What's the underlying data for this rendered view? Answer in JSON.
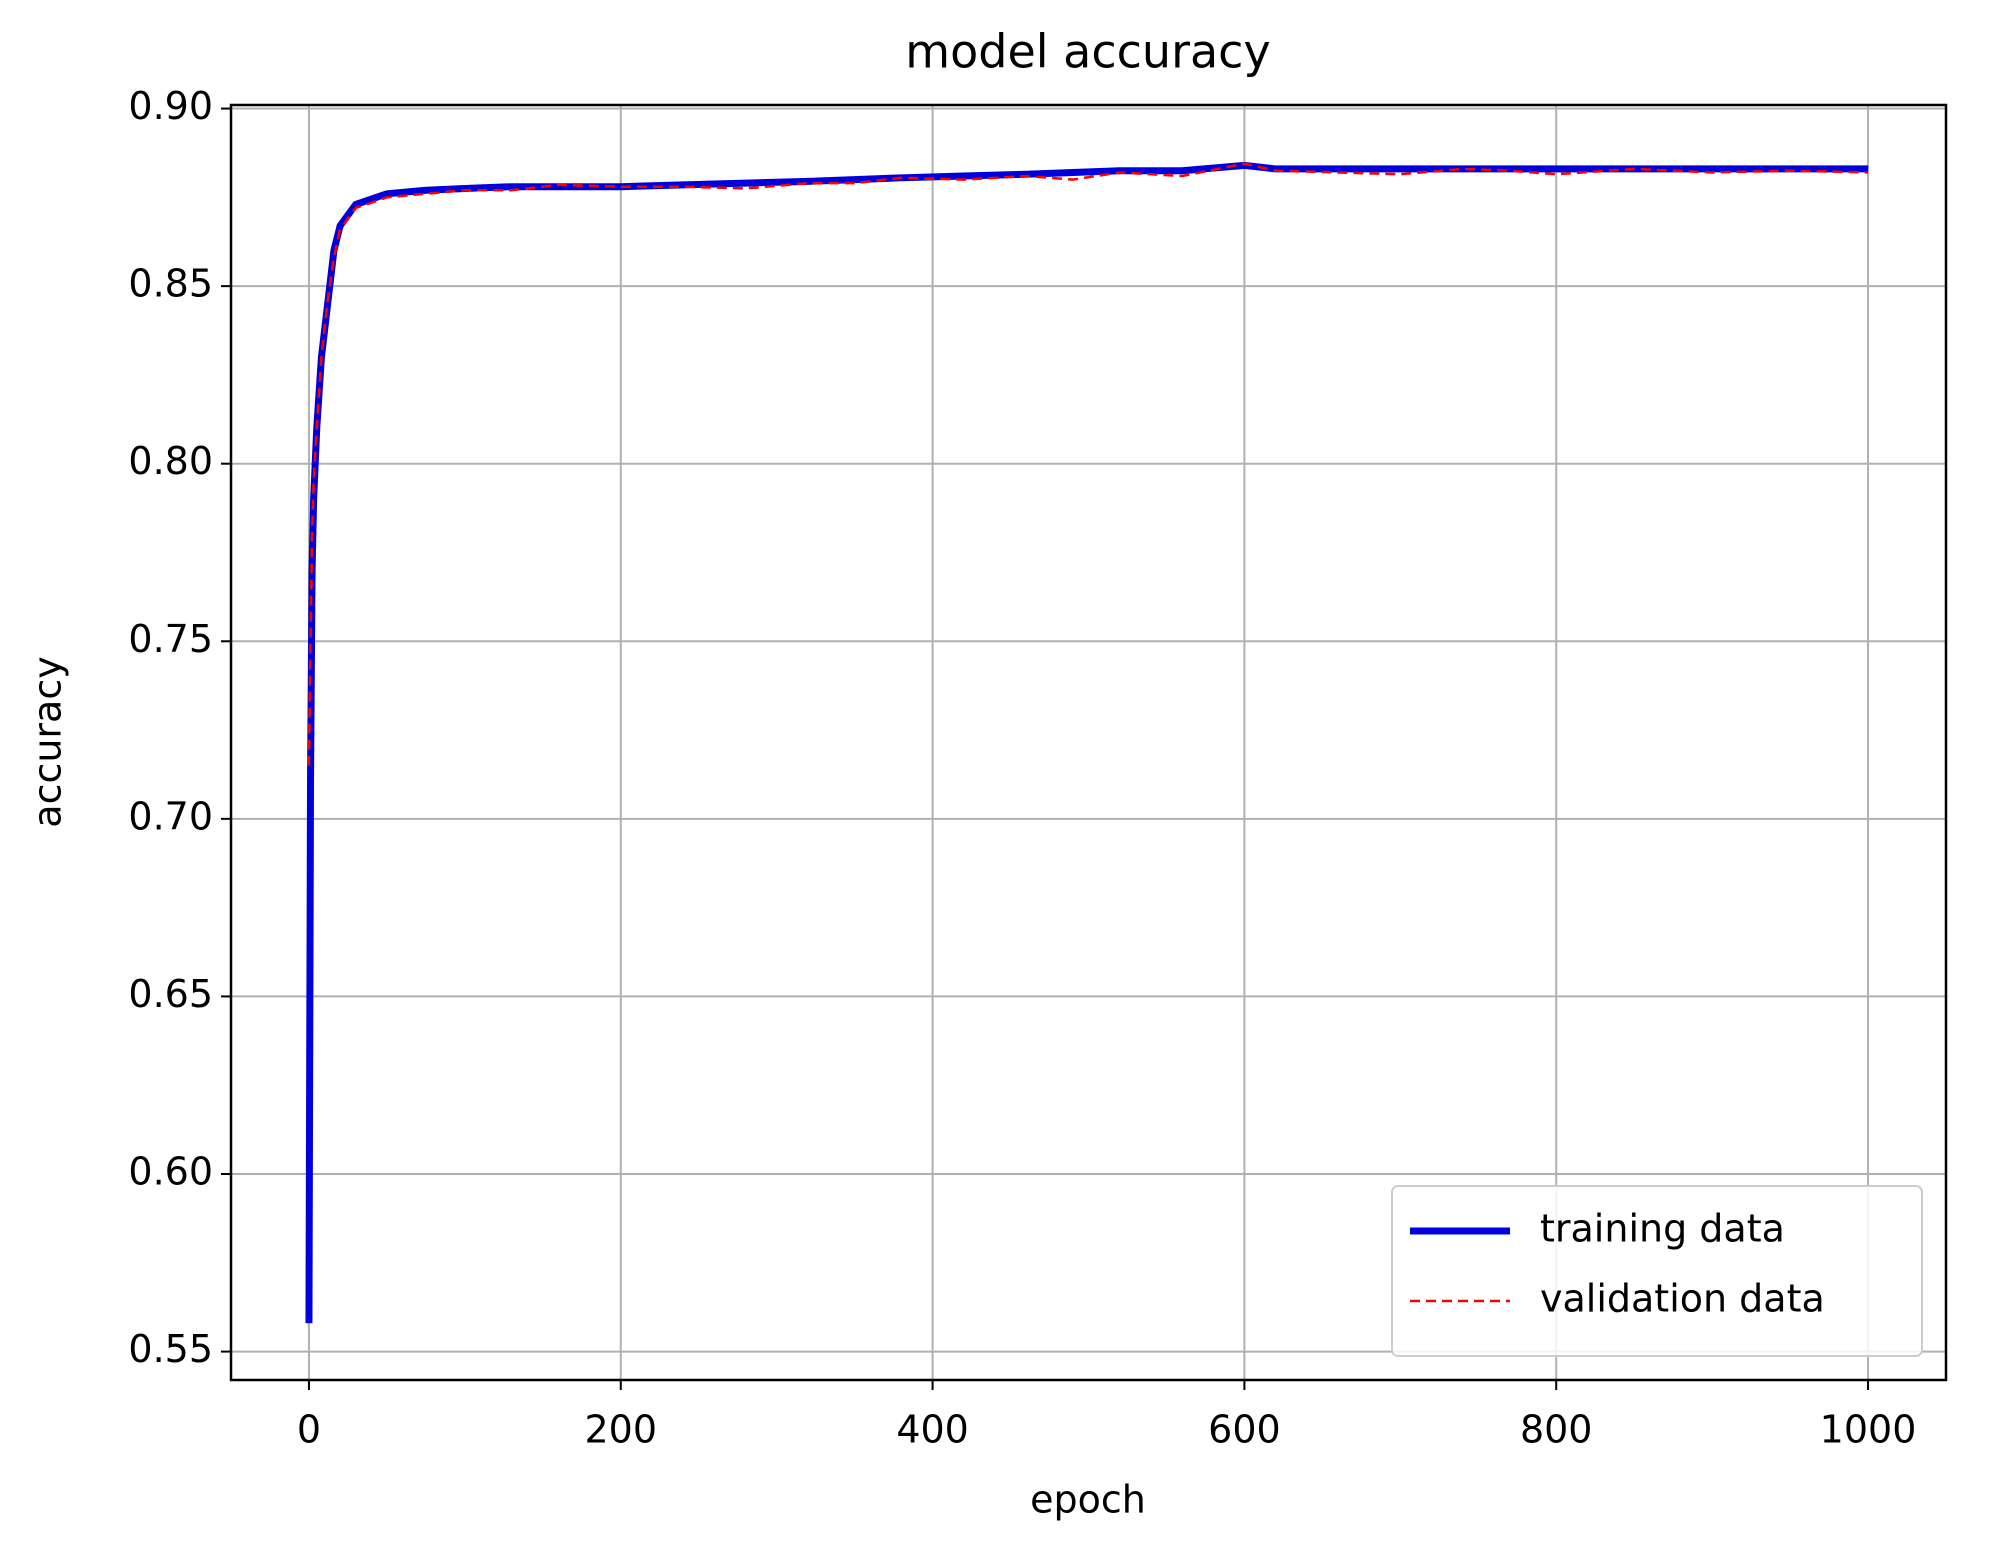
{
  "chart_data": {
    "type": "line",
    "title": "model accuracy",
    "xlabel": "epoch",
    "ylabel": "accuracy",
    "x": [
      0,
      1,
      2,
      3,
      5,
      8,
      12,
      16,
      20,
      30,
      50,
      75,
      100,
      130,
      160,
      200,
      240,
      280,
      320,
      350,
      380,
      420,
      460,
      490,
      520,
      560,
      600,
      620,
      660,
      700,
      740,
      770,
      800,
      850,
      900,
      950,
      1000
    ],
    "series": [
      {
        "name": "training data",
        "color": "#0000dd",
        "style": "solid",
        "values": [
          0.558,
          0.71,
          0.77,
          0.79,
          0.81,
          0.83,
          0.845,
          0.86,
          0.867,
          0.873,
          0.876,
          0.877,
          0.8775,
          0.878,
          0.878,
          0.878,
          0.8785,
          0.879,
          0.8795,
          0.88,
          0.8805,
          0.881,
          0.8815,
          0.882,
          0.8825,
          0.8825,
          0.884,
          0.883,
          0.883,
          0.883,
          0.883,
          0.883,
          0.883,
          0.883,
          0.883,
          0.883,
          0.883
        ]
      },
      {
        "name": "validation data",
        "color": "#ff0000",
        "style": "dashed",
        "values": [
          0.715,
          0.75,
          0.78,
          0.795,
          0.81,
          0.83,
          0.846,
          0.858,
          0.866,
          0.872,
          0.875,
          0.876,
          0.877,
          0.877,
          0.8785,
          0.878,
          0.878,
          0.8775,
          0.879,
          0.879,
          0.8805,
          0.88,
          0.881,
          0.88,
          0.882,
          0.881,
          0.8845,
          0.8825,
          0.882,
          0.8815,
          0.883,
          0.8825,
          0.8815,
          0.883,
          0.882,
          0.8825,
          0.882
        ]
      }
    ],
    "xlim": [
      -50,
      1050
    ],
    "ylim": [
      0.542,
      0.901
    ],
    "xticks": [
      0,
      200,
      400,
      600,
      800,
      1000
    ],
    "yticks": [
      {
        "value": 0.55,
        "label": "0.55"
      },
      {
        "value": 0.6,
        "label": "0.60"
      },
      {
        "value": 0.65,
        "label": "0.65"
      },
      {
        "value": 0.7,
        "label": "0.70"
      },
      {
        "value": 0.75,
        "label": "0.75"
      },
      {
        "value": 0.8,
        "label": "0.80"
      },
      {
        "value": 0.85,
        "label": "0.85"
      },
      {
        "value": 0.9,
        "label": "0.90"
      }
    ],
    "grid": true,
    "legend": "lower right"
  }
}
